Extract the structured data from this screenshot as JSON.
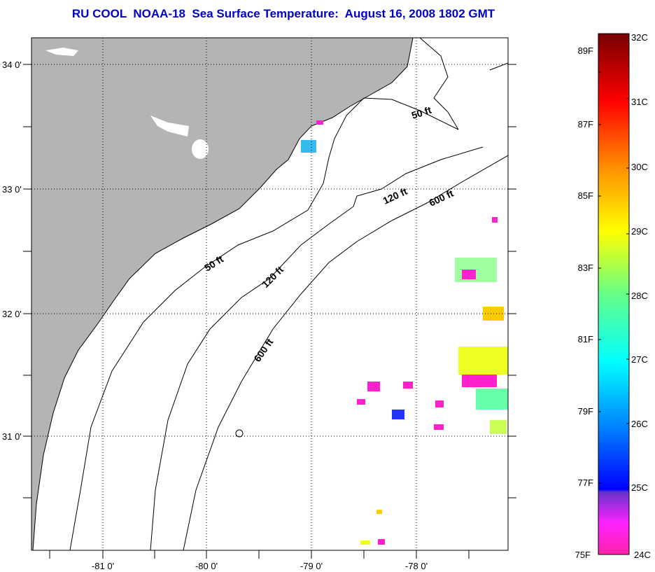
{
  "title": "RU COOL  NOAA-18  Sea Surface Temperature:  August 16, 2008 1802 GMT",
  "map": {
    "lon_ticks": [
      "-81 0'",
      "-80 0'",
      "-79 0'",
      "-78 0'"
    ],
    "lat_ticks": [
      "34 0'",
      "33 0'",
      "32 0'",
      "31 0'"
    ],
    "contour_labels": [
      "50 ft",
      "50 ft",
      "120 ft",
      "120 ft",
      "600 ft",
      "600 ft"
    ],
    "land_color": "#b4b4b4"
  },
  "colorbar": {
    "fahrenheit_labels": [
      "89F",
      "87F",
      "85F",
      "83F",
      "81F",
      "79F",
      "77F",
      "75F"
    ],
    "celsius_labels": [
      "32C",
      "31C",
      "30C",
      "29C",
      "28C",
      "27C",
      "26C",
      "25C",
      "24C"
    ],
    "range_c": [
      24,
      32
    ]
  }
}
